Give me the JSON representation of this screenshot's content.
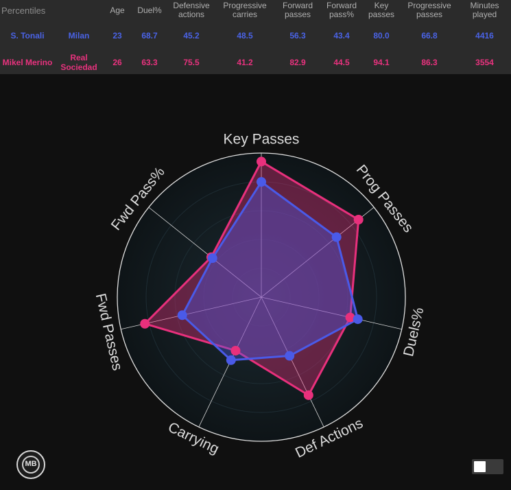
{
  "table": {
    "columns": [
      "Percentiles",
      "",
      "Age",
      "Duel%",
      "Defensive actions",
      "Progressive carries",
      "Forward passes",
      "Forward pass%",
      "Key passes",
      "Progressive passes",
      "Minutes played"
    ],
    "rows": [
      {
        "player": "S. Tonali",
        "team": "Milan",
        "age": "23",
        "duel": "68.7",
        "def_actions": "45.2",
        "prog_carries": "48.5",
        "fwd_passes": "56.3",
        "fwd_pass_pct": "43.4",
        "key_passes": "80.0",
        "prog_passes": "66.8",
        "minutes": "4416"
      },
      {
        "player": "Mikel Merino",
        "team": "Real Sociedad",
        "age": "26",
        "duel": "63.3",
        "def_actions": "75.5",
        "prog_carries": "41.2",
        "fwd_passes": "82.9",
        "fwd_pass_pct": "44.5",
        "key_passes": "94.1",
        "prog_passes": "86.3",
        "minutes": "3554"
      }
    ]
  },
  "chart_data": {
    "type": "radar",
    "axes": [
      "Key Passes",
      "Prog Passes",
      "Duels%",
      "Def Actions",
      "Carrying",
      "Fwd Passes",
      "Fwd Pass%"
    ],
    "range": [
      0,
      100
    ],
    "series": [
      {
        "name": "S. Tonali",
        "color": "#4a5ae8",
        "values": [
          80.0,
          66.8,
          68.7,
          45.2,
          48.5,
          56.3,
          43.4
        ]
      },
      {
        "name": "Mikel Merino",
        "color": "#e8307c",
        "values": [
          94.1,
          86.3,
          63.3,
          75.5,
          41.2,
          82.9,
          44.5
        ]
      }
    ]
  },
  "logo": {
    "text": "MB"
  },
  "colors": {
    "tonali": "#4a63e6",
    "merino": "#e8327e",
    "background": "#101010",
    "table_bg": "#2b2b2b"
  }
}
